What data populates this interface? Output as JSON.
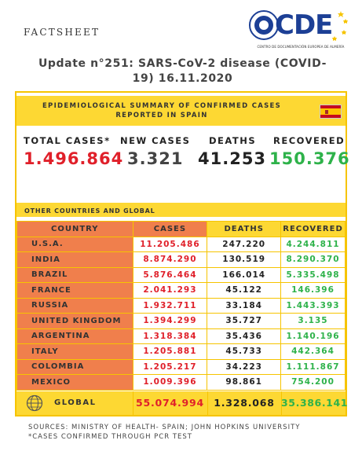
{
  "header": {
    "factsheet_label": "FACTSHEET",
    "logo_text": "CDE",
    "logo_subtitle": "CENTRO DE DOCUMENTACIÓN EUROPEA DE ALMERÍA",
    "headline_line1": "Update n°251: SARS-CoV-2 disease (COVID-",
    "headline_line2": "19) 16.11.2020"
  },
  "summary": {
    "banner_line1": "EPIDEMIOLOGICAL SUMMARY OF CONFIRMED CASES",
    "banner_line2": "REPORTED IN SPAIN",
    "flag_icon": "spain-flag-icon",
    "total_cases_label": "TOTAL CASES*",
    "total_cases_value": "1.496.864",
    "new_cases_label": "NEW CASES",
    "new_cases_value": "3.321",
    "deaths_label": "DEATHS",
    "deaths_value": "41.253",
    "recovered_label": "RECOVERED",
    "recovered_value": "150.376",
    "colors": {
      "cases": "#e0202a",
      "deaths": "#222222",
      "recovered": "#2eb24a",
      "accent": "#fdd833",
      "country_col": "#f07f4c"
    }
  },
  "global_section": {
    "title": "OTHER COUNTRIES AND GLOBAL",
    "headers": [
      "COUNTRY",
      "CASES",
      "DEATHS",
      "RECOVERED"
    ],
    "rows": [
      [
        "U.S.A.",
        "11.205.486",
        "247.220",
        "4.244.811"
      ],
      [
        "INDIA",
        "8.874.290",
        "130.519",
        "8.290.370"
      ],
      [
        "BRAZIL",
        "5.876.464",
        "166.014",
        "5.335.498"
      ],
      [
        "FRANCE",
        "2.041.293",
        "45.122",
        "146.396"
      ],
      [
        "RUSSIA",
        "1.932.711",
        "33.184",
        "1.443.393"
      ],
      [
        "UNITED KINGDOM",
        "1.394.299",
        "35.727",
        "3.135"
      ],
      [
        "ARGENTINA",
        "1.318.384",
        "35.436",
        "1.140.196"
      ],
      [
        "ITALY",
        "1.205.881",
        "45.733",
        "442.364"
      ],
      [
        "COLOMBIA",
        "1.205.217",
        "34.223",
        "1.111.867"
      ],
      [
        "MEXICO",
        "1.009.396",
        "98.861",
        "754.200"
      ]
    ],
    "global": {
      "icon": "globe-icon",
      "label": "GLOBAL",
      "cases": "55.074.994",
      "deaths": "1.328.068",
      "recovered": "35.386.141"
    }
  },
  "footer": {
    "sources": "SOURCES: MINISTRY OF HEALTH- SPAIN; JOHN HOPKINS UNIVERSITY",
    "note": "*CASES CONFIRMED THROUGH PCR TEST"
  }
}
